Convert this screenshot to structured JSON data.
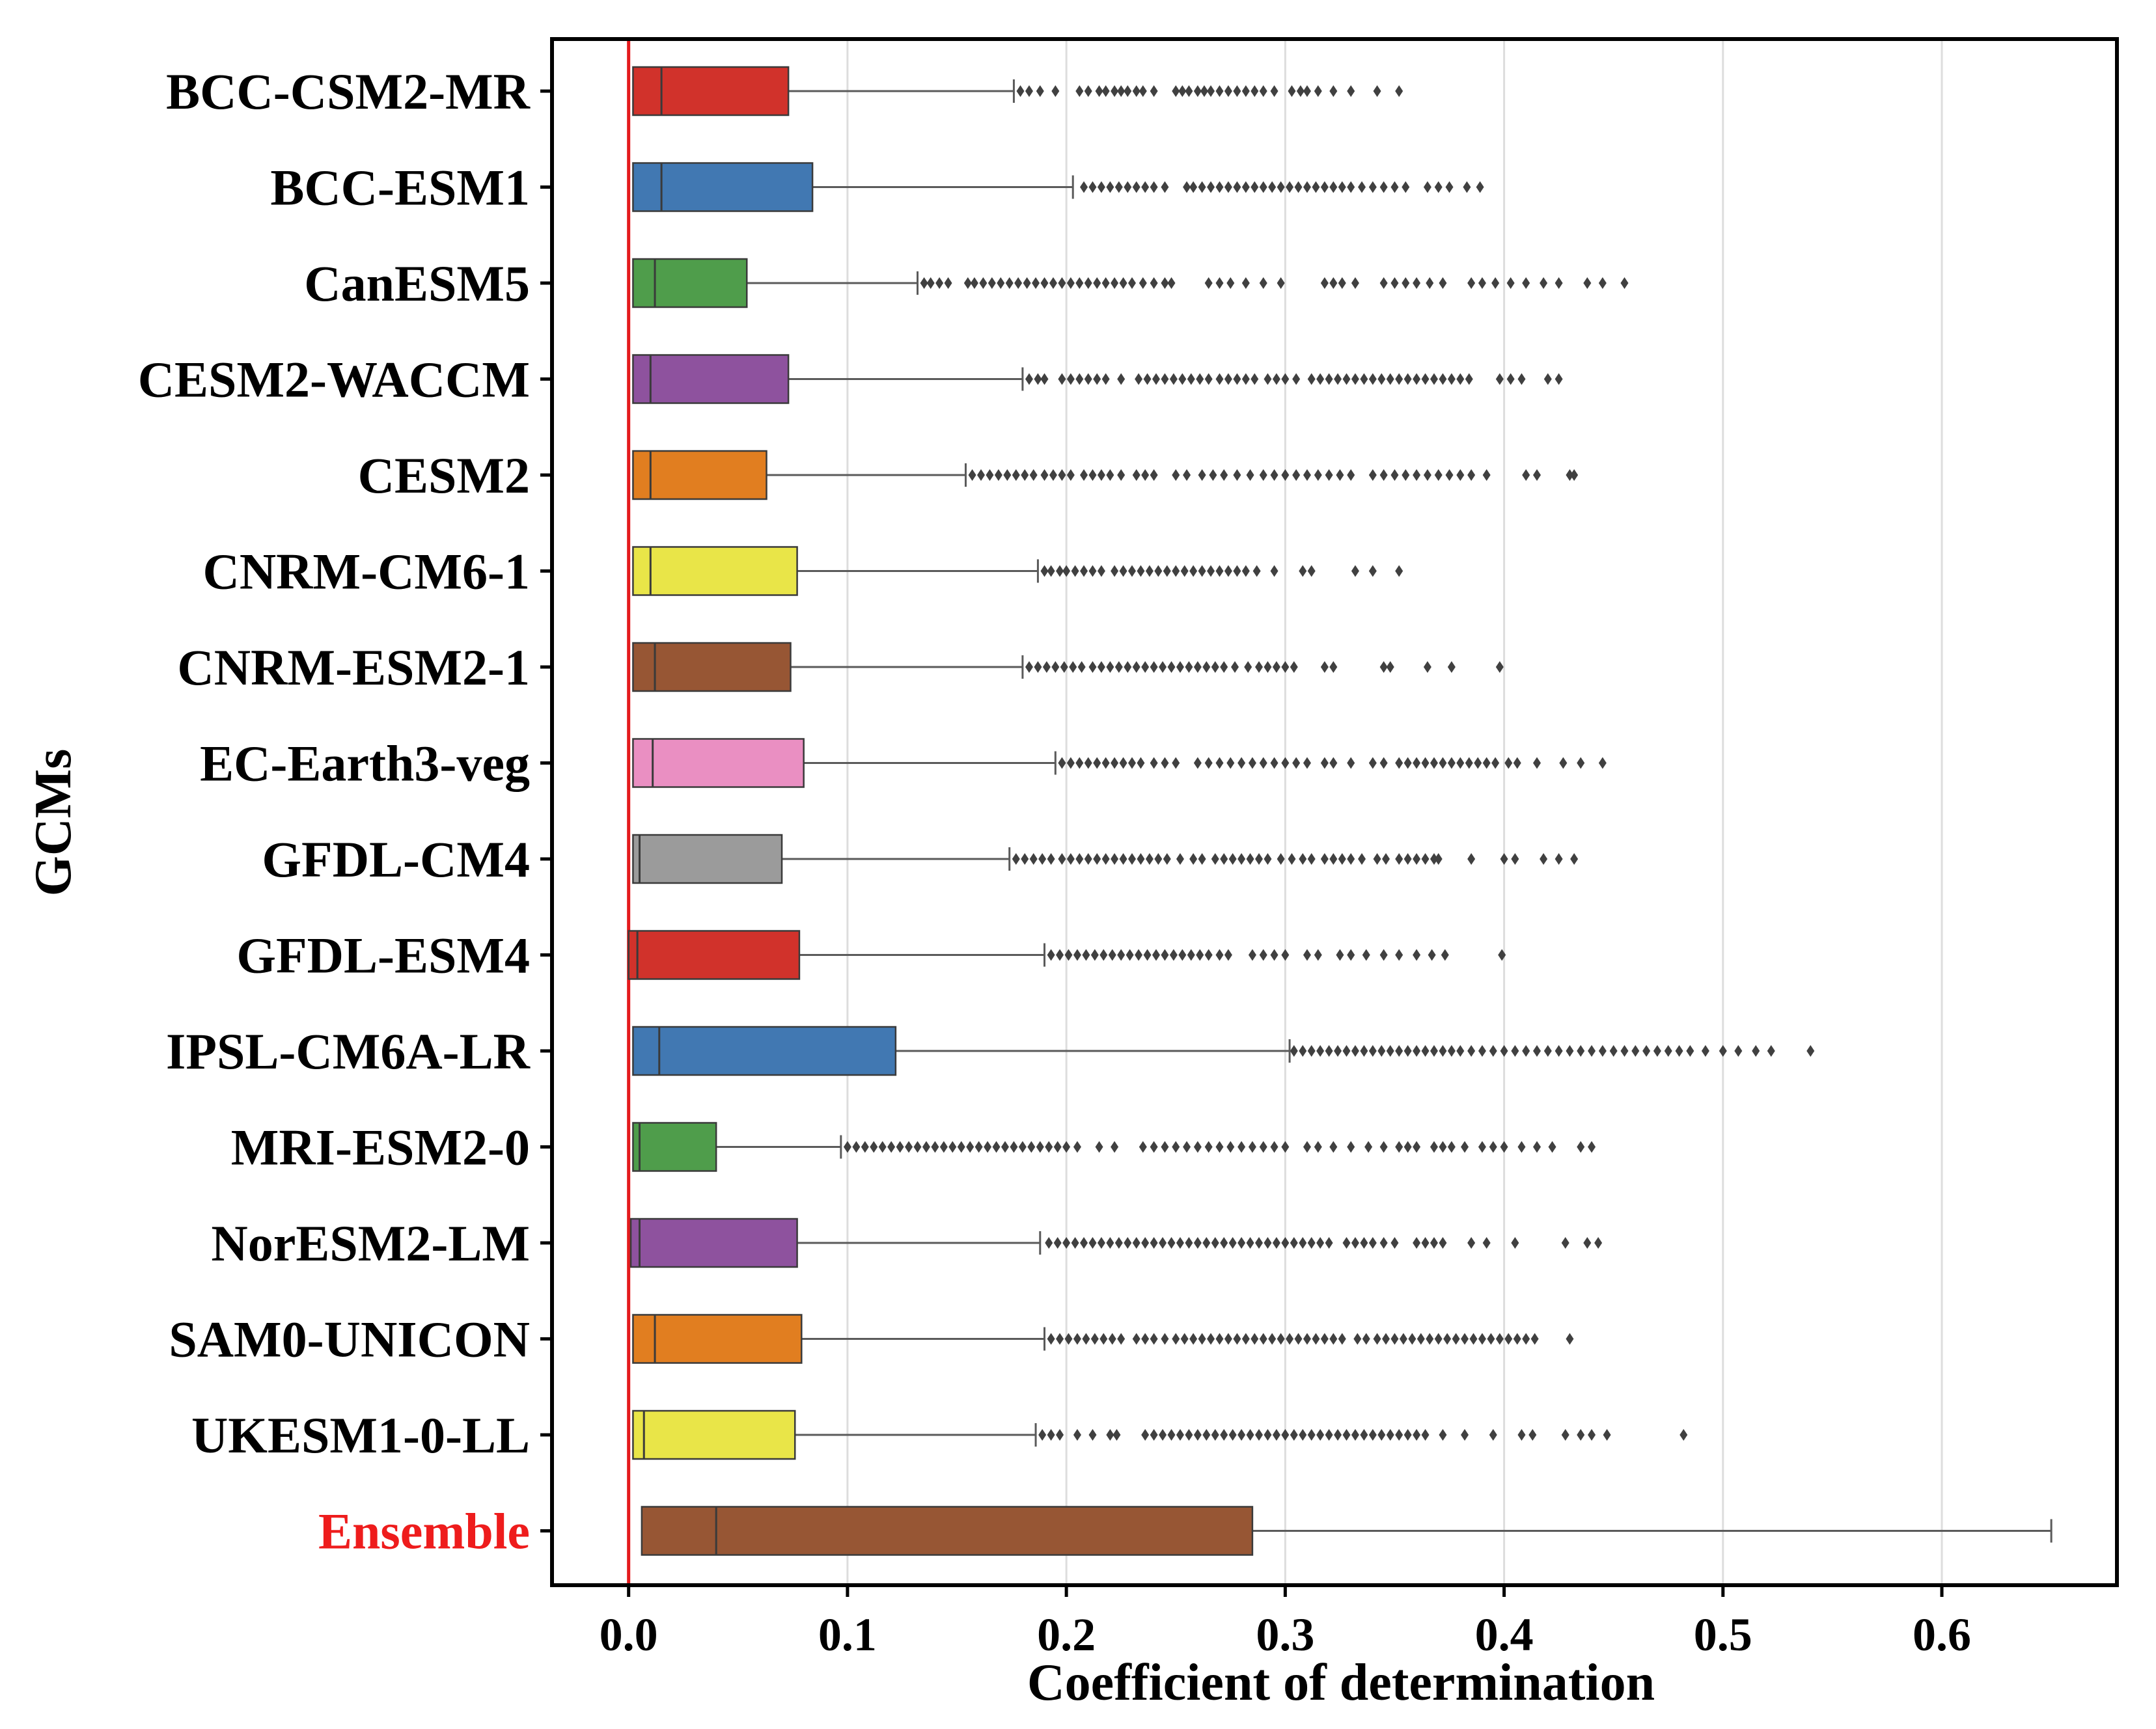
{
  "chart_data": {
    "type": "boxplot",
    "orientation": "horizontal",
    "title": "",
    "xlabel": "Coefficient of determination",
    "ylabel": "GCMs",
    "xlim": [
      -0.035,
      0.68
    ],
    "xticks": [
      0.0,
      0.1,
      0.2,
      0.3,
      0.4,
      0.5,
      0.6
    ],
    "xtick_labels": [
      "0.0",
      "0.1",
      "0.2",
      "0.3",
      "0.4",
      "0.5",
      "0.6"
    ],
    "grid": "vertical",
    "reference_line": {
      "x": 0.0,
      "color": "#e41a1c"
    },
    "colors": {
      "red": "#d1322b",
      "blue": "#4178b2",
      "green": "#4f9d4b",
      "purple": "#8e529e",
      "orange": "#e17e20",
      "yellow": "#e9e548",
      "brown": "#975634",
      "pink": "#ea8fc2",
      "gray": "#9b9b9b",
      "whisker": "#5a5a5a",
      "flier": "#404040",
      "highlight_label": "#ee1c1c"
    },
    "series": [
      {
        "name": "BCC-CSM2-MR",
        "color": "#d1322b",
        "min": 0.002,
        "q1": 0.002,
        "median": 0.015,
        "q3": 0.073,
        "whisker_high": 0.176,
        "fliers": [
          0.179,
          0.183,
          0.188,
          0.195,
          0.206,
          0.21,
          0.215,
          0.218,
          0.222,
          0.225,
          0.228,
          0.232,
          0.235,
          0.24,
          0.25,
          0.253,
          0.256,
          0.26,
          0.263,
          0.266,
          0.27,
          0.274,
          0.278,
          0.282,
          0.286,
          0.29,
          0.295,
          0.303,
          0.307,
          0.31,
          0.315,
          0.322,
          0.33,
          0.342,
          0.352
        ]
      },
      {
        "name": "BCC-ESM1",
        "color": "#4178b2",
        "min": 0.002,
        "q1": 0.002,
        "median": 0.015,
        "q3": 0.084,
        "whisker_high": 0.203,
        "fliers": [
          0.208,
          0.212,
          0.216,
          0.22,
          0.224,
          0.228,
          0.232,
          0.236,
          0.24,
          0.245,
          0.255,
          0.258,
          0.262,
          0.266,
          0.27,
          0.274,
          0.278,
          0.282,
          0.286,
          0.29,
          0.294,
          0.298,
          0.302,
          0.306,
          0.31,
          0.314,
          0.318,
          0.322,
          0.326,
          0.33,
          0.335,
          0.34,
          0.345,
          0.35,
          0.355,
          0.365,
          0.37,
          0.375,
          0.383,
          0.389
        ]
      },
      {
        "name": "CanESM5",
        "color": "#4f9d4b",
        "min": 0.002,
        "q1": 0.002,
        "median": 0.012,
        "q3": 0.054,
        "whisker_high": 0.132,
        "fliers": [
          0.135,
          0.138,
          0.142,
          0.146,
          0.155,
          0.158,
          0.162,
          0.166,
          0.17,
          0.174,
          0.178,
          0.182,
          0.186,
          0.19,
          0.194,
          0.198,
          0.202,
          0.206,
          0.21,
          0.214,
          0.218,
          0.222,
          0.226,
          0.23,
          0.235,
          0.24,
          0.245,
          0.248,
          0.265,
          0.27,
          0.275,
          0.282,
          0.29,
          0.298,
          0.318,
          0.322,
          0.326,
          0.332,
          0.345,
          0.35,
          0.355,
          0.36,
          0.366,
          0.372,
          0.385,
          0.39,
          0.396,
          0.403,
          0.41,
          0.418,
          0.425,
          0.438,
          0.445,
          0.455
        ]
      },
      {
        "name": "CESM2-WACCM",
        "color": "#8e529e",
        "min": 0.002,
        "q1": 0.002,
        "median": 0.01,
        "q3": 0.073,
        "whisker_high": 0.18,
        "fliers": [
          0.183,
          0.187,
          0.19,
          0.198,
          0.202,
          0.206,
          0.21,
          0.214,
          0.218,
          0.225,
          0.233,
          0.237,
          0.241,
          0.245,
          0.249,
          0.253,
          0.257,
          0.261,
          0.265,
          0.27,
          0.274,
          0.278,
          0.282,
          0.286,
          0.292,
          0.296,
          0.3,
          0.305,
          0.312,
          0.316,
          0.32,
          0.324,
          0.328,
          0.332,
          0.336,
          0.34,
          0.344,
          0.348,
          0.352,
          0.356,
          0.36,
          0.364,
          0.368,
          0.372,
          0.376,
          0.38,
          0.384,
          0.398,
          0.403,
          0.408,
          0.42,
          0.425
        ]
      },
      {
        "name": "CESM2",
        "color": "#e17e20",
        "min": 0.002,
        "q1": 0.002,
        "median": 0.01,
        "q3": 0.063,
        "whisker_high": 0.154,
        "fliers": [
          0.157,
          0.161,
          0.165,
          0.169,
          0.173,
          0.177,
          0.181,
          0.185,
          0.19,
          0.194,
          0.198,
          0.202,
          0.208,
          0.212,
          0.216,
          0.22,
          0.225,
          0.232,
          0.236,
          0.24,
          0.25,
          0.255,
          0.262,
          0.267,
          0.272,
          0.278,
          0.284,
          0.29,
          0.295,
          0.3,
          0.305,
          0.31,
          0.315,
          0.32,
          0.325,
          0.33,
          0.34,
          0.345,
          0.35,
          0.355,
          0.36,
          0.365,
          0.37,
          0.375,
          0.38,
          0.385,
          0.392,
          0.41,
          0.415,
          0.43,
          0.432
        ]
      },
      {
        "name": "CNRM-CM6-1",
        "color": "#e9e548",
        "min": 0.002,
        "q1": 0.002,
        "median": 0.01,
        "q3": 0.077,
        "whisker_high": 0.187,
        "fliers": [
          0.19,
          0.193,
          0.197,
          0.2,
          0.204,
          0.208,
          0.212,
          0.216,
          0.222,
          0.226,
          0.23,
          0.234,
          0.238,
          0.242,
          0.246,
          0.25,
          0.254,
          0.258,
          0.262,
          0.266,
          0.27,
          0.274,
          0.278,
          0.282,
          0.287,
          0.295,
          0.308,
          0.312,
          0.332,
          0.34,
          0.352
        ]
      },
      {
        "name": "CNRM-ESM2-1",
        "color": "#975634",
        "min": 0.002,
        "q1": 0.002,
        "median": 0.012,
        "q3": 0.074,
        "whisker_high": 0.18,
        "fliers": [
          0.183,
          0.187,
          0.191,
          0.195,
          0.199,
          0.203,
          0.207,
          0.212,
          0.216,
          0.22,
          0.224,
          0.228,
          0.232,
          0.236,
          0.24,
          0.244,
          0.248,
          0.252,
          0.256,
          0.26,
          0.264,
          0.268,
          0.272,
          0.277,
          0.283,
          0.288,
          0.292,
          0.296,
          0.3,
          0.304,
          0.318,
          0.322,
          0.345,
          0.348,
          0.365,
          0.376,
          0.398
        ]
      },
      {
        "name": "EC-Earth3-veg",
        "color": "#ea8fc2",
        "min": 0.002,
        "q1": 0.002,
        "median": 0.011,
        "q3": 0.08,
        "whisker_high": 0.195,
        "fliers": [
          0.198,
          0.202,
          0.206,
          0.21,
          0.214,
          0.218,
          0.222,
          0.226,
          0.23,
          0.234,
          0.24,
          0.245,
          0.25,
          0.26,
          0.265,
          0.27,
          0.275,
          0.28,
          0.285,
          0.29,
          0.295,
          0.3,
          0.305,
          0.31,
          0.318,
          0.322,
          0.33,
          0.34,
          0.345,
          0.352,
          0.356,
          0.36,
          0.364,
          0.368,
          0.372,
          0.376,
          0.38,
          0.384,
          0.388,
          0.392,
          0.396,
          0.402,
          0.406,
          0.415,
          0.427,
          0.435,
          0.445
        ]
      },
      {
        "name": "GFDL-CM4",
        "color": "#9b9b9b",
        "min": 0.002,
        "q1": 0.002,
        "median": 0.005,
        "q3": 0.07,
        "whisker_high": 0.174,
        "fliers": [
          0.177,
          0.181,
          0.185,
          0.189,
          0.193,
          0.198,
          0.202,
          0.206,
          0.21,
          0.214,
          0.218,
          0.222,
          0.226,
          0.23,
          0.234,
          0.238,
          0.242,
          0.246,
          0.252,
          0.258,
          0.262,
          0.268,
          0.272,
          0.276,
          0.28,
          0.284,
          0.288,
          0.292,
          0.298,
          0.303,
          0.308,
          0.312,
          0.318,
          0.322,
          0.326,
          0.33,
          0.335,
          0.342,
          0.346,
          0.352,
          0.356,
          0.36,
          0.364,
          0.368,
          0.37,
          0.385,
          0.4,
          0.405,
          0.418,
          0.425,
          0.432
        ]
      },
      {
        "name": "GFDL-ESM4",
        "color": "#d1322b",
        "min": 0.0,
        "q1": 0.0,
        "median": 0.004,
        "q3": 0.078,
        "whisker_high": 0.19,
        "fliers": [
          0.193,
          0.197,
          0.201,
          0.205,
          0.209,
          0.213,
          0.217,
          0.221,
          0.225,
          0.229,
          0.233,
          0.237,
          0.241,
          0.245,
          0.249,
          0.253,
          0.257,
          0.261,
          0.265,
          0.27,
          0.274,
          0.285,
          0.29,
          0.295,
          0.3,
          0.31,
          0.315,
          0.325,
          0.33,
          0.337,
          0.345,
          0.352,
          0.36,
          0.367,
          0.373,
          0.399
        ]
      },
      {
        "name": "IPSL-CM6A-LR",
        "color": "#4178b2",
        "min": 0.002,
        "q1": 0.002,
        "median": 0.014,
        "q3": 0.122,
        "whisker_high": 0.302,
        "fliers": [
          0.304,
          0.308,
          0.312,
          0.316,
          0.32,
          0.324,
          0.328,
          0.332,
          0.336,
          0.34,
          0.344,
          0.348,
          0.352,
          0.356,
          0.36,
          0.364,
          0.368,
          0.372,
          0.376,
          0.38,
          0.385,
          0.39,
          0.395,
          0.4,
          0.405,
          0.41,
          0.415,
          0.42,
          0.425,
          0.43,
          0.435,
          0.44,
          0.445,
          0.45,
          0.455,
          0.46,
          0.465,
          0.47,
          0.475,
          0.48,
          0.485,
          0.492,
          0.5,
          0.507,
          0.515,
          0.522,
          0.54
        ]
      },
      {
        "name": "MRI-ESM2-0",
        "color": "#4f9d4b",
        "min": 0.002,
        "q1": 0.002,
        "median": 0.005,
        "q3": 0.04,
        "whisker_high": 0.097,
        "fliers": [
          0.1,
          0.104,
          0.108,
          0.112,
          0.116,
          0.12,
          0.124,
          0.128,
          0.132,
          0.136,
          0.14,
          0.144,
          0.148,
          0.152,
          0.156,
          0.16,
          0.164,
          0.168,
          0.172,
          0.176,
          0.18,
          0.184,
          0.188,
          0.192,
          0.196,
          0.2,
          0.205,
          0.215,
          0.222,
          0.235,
          0.24,
          0.245,
          0.25,
          0.255,
          0.26,
          0.265,
          0.27,
          0.275,
          0.28,
          0.285,
          0.29,
          0.295,
          0.3,
          0.31,
          0.315,
          0.322,
          0.33,
          0.338,
          0.345,
          0.352,
          0.356,
          0.36,
          0.368,
          0.372,
          0.376,
          0.382,
          0.39,
          0.395,
          0.4,
          0.408,
          0.415,
          0.422,
          0.435,
          0.44
        ]
      },
      {
        "name": "NorESM2-LM",
        "color": "#8e529e",
        "min": 0.001,
        "q1": 0.001,
        "median": 0.005,
        "q3": 0.077,
        "whisker_high": 0.188,
        "fliers": [
          0.192,
          0.196,
          0.2,
          0.204,
          0.208,
          0.212,
          0.216,
          0.22,
          0.224,
          0.228,
          0.232,
          0.236,
          0.24,
          0.244,
          0.248,
          0.252,
          0.256,
          0.26,
          0.264,
          0.268,
          0.272,
          0.276,
          0.28,
          0.284,
          0.288,
          0.292,
          0.296,
          0.3,
          0.304,
          0.308,
          0.312,
          0.316,
          0.32,
          0.328,
          0.332,
          0.336,
          0.34,
          0.345,
          0.35,
          0.36,
          0.364,
          0.368,
          0.372,
          0.385,
          0.392,
          0.405,
          0.428,
          0.438,
          0.443
        ]
      },
      {
        "name": "SAM0-UNICON",
        "color": "#e17e20",
        "min": 0.002,
        "q1": 0.002,
        "median": 0.012,
        "q3": 0.079,
        "whisker_high": 0.19,
        "fliers": [
          0.193,
          0.197,
          0.201,
          0.205,
          0.209,
          0.213,
          0.217,
          0.221,
          0.225,
          0.232,
          0.236,
          0.24,
          0.245,
          0.25,
          0.254,
          0.258,
          0.262,
          0.266,
          0.27,
          0.274,
          0.278,
          0.282,
          0.286,
          0.29,
          0.294,
          0.298,
          0.302,
          0.306,
          0.31,
          0.314,
          0.318,
          0.322,
          0.326,
          0.333,
          0.337,
          0.342,
          0.346,
          0.35,
          0.354,
          0.358,
          0.362,
          0.366,
          0.37,
          0.374,
          0.378,
          0.382,
          0.386,
          0.39,
          0.394,
          0.398,
          0.402,
          0.406,
          0.41,
          0.414,
          0.43
        ]
      },
      {
        "name": "UKESM1-0-LL",
        "color": "#e9e548",
        "min": 0.002,
        "q1": 0.002,
        "median": 0.007,
        "q3": 0.076,
        "whisker_high": 0.186,
        "fliers": [
          0.189,
          0.193,
          0.197,
          0.205,
          0.212,
          0.22,
          0.223,
          0.236,
          0.24,
          0.244,
          0.248,
          0.252,
          0.256,
          0.26,
          0.264,
          0.268,
          0.272,
          0.276,
          0.28,
          0.284,
          0.288,
          0.292,
          0.296,
          0.3,
          0.304,
          0.308,
          0.312,
          0.316,
          0.32,
          0.324,
          0.328,
          0.332,
          0.336,
          0.34,
          0.344,
          0.348,
          0.352,
          0.356,
          0.36,
          0.364,
          0.372,
          0.382,
          0.395,
          0.408,
          0.413,
          0.428,
          0.435,
          0.44,
          0.447,
          0.482
        ]
      },
      {
        "name": "Ensemble",
        "color": "#975634",
        "label_color": "#ee1c1c",
        "min": 0.006,
        "q1": 0.006,
        "median": 0.04,
        "q3": 0.285,
        "whisker_high": 0.65,
        "fliers": []
      }
    ]
  }
}
